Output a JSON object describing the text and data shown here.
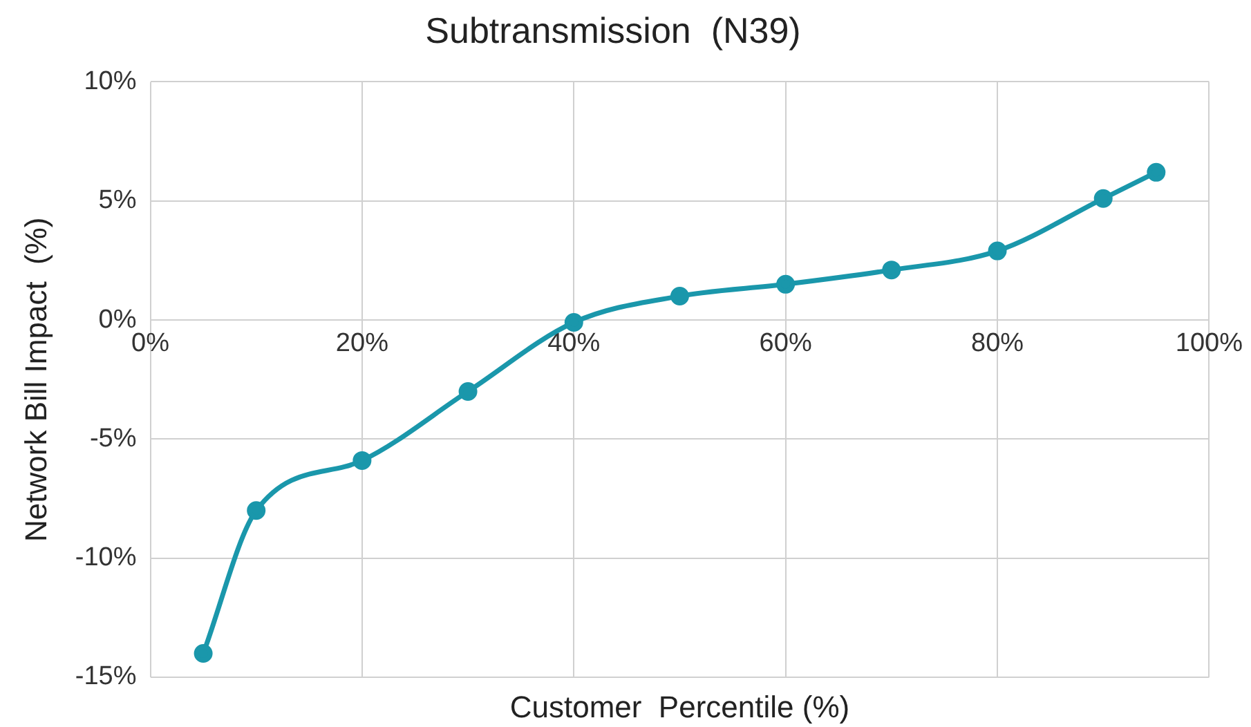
{
  "chart_data": {
    "type": "line",
    "title": "Subtransmission  (N39)",
    "xlabel": "Customer  Percentile (%)",
    "ylabel": "Network Bill Impact  (%)",
    "x": [
      5,
      10,
      20,
      30,
      40,
      50,
      60,
      70,
      80,
      90,
      95
    ],
    "series": [
      {
        "color": "#1a97ab",
        "values": [
          -14,
          -8,
          -5.9,
          -3,
          -0.1,
          1.0,
          1.5,
          2.1,
          2.9,
          5.1,
          6.2
        ]
      }
    ],
    "xlim": [
      0,
      100
    ],
    "xticks": [
      {
        "value": 0,
        "label": "0%"
      },
      {
        "value": 20,
        "label": "20%"
      },
      {
        "value": 40,
        "label": "40%"
      },
      {
        "value": 60,
        "label": "60%"
      },
      {
        "value": 80,
        "label": "80%"
      },
      {
        "value": 100,
        "label": "100%"
      }
    ],
    "ylim": [
      -15,
      10
    ],
    "yticks": [
      {
        "value": -15,
        "label": "-15%"
      },
      {
        "value": -10,
        "label": "-10%"
      },
      {
        "value": -5,
        "label": "-5%"
      },
      {
        "value": 0,
        "label": "0%"
      },
      {
        "value": 5,
        "label": "5%"
      },
      {
        "value": 10,
        "label": "10%"
      }
    ],
    "grid": true,
    "legend": false,
    "marker": "circle",
    "line_style": "solid"
  }
}
